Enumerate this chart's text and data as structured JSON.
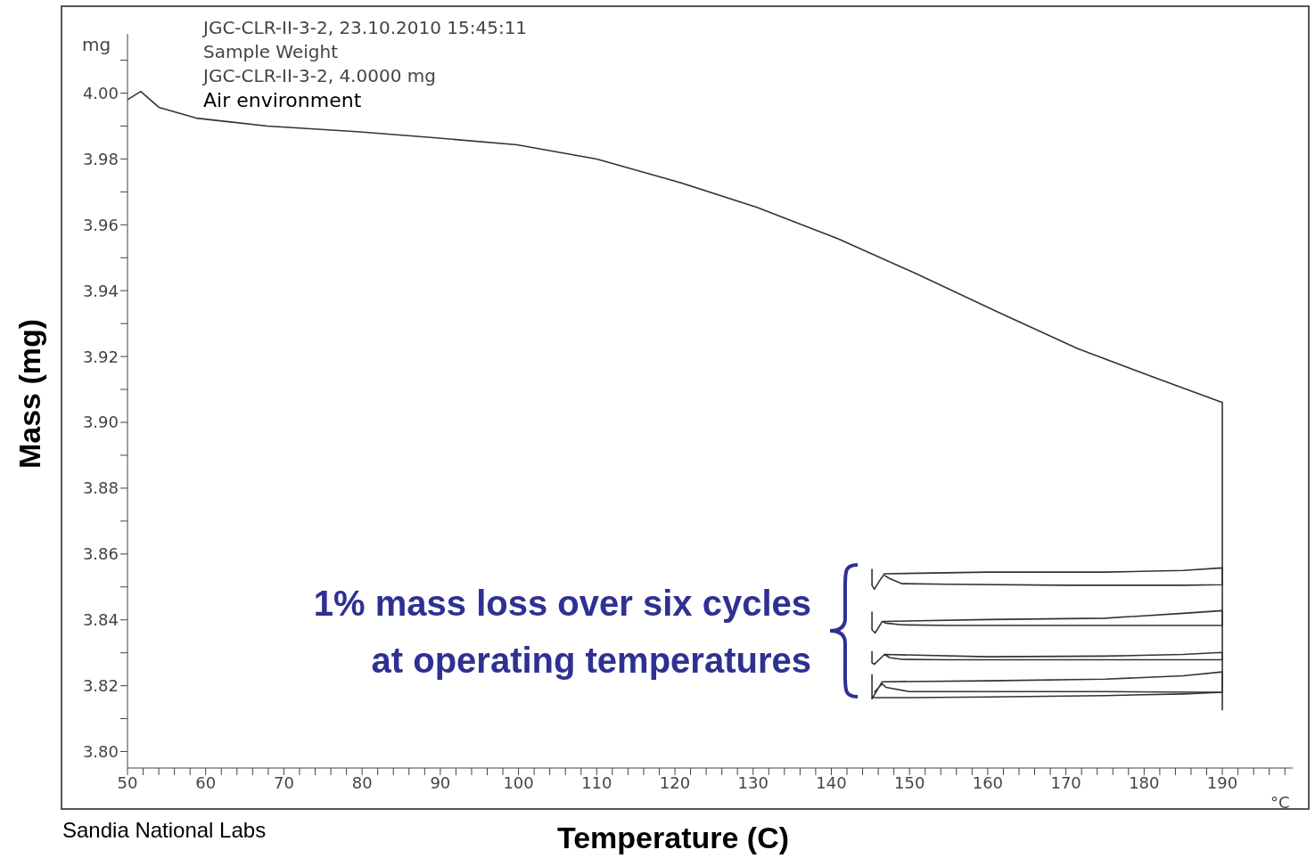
{
  "chart_data": {
    "type": "line",
    "xlabel": "Temperature (C)",
    "ylabel": "Mass (mg)",
    "annotations": [
      "JGC-CLR-II-3-2, 23.10.2010 15:45:11",
      "Sample Weight",
      "JGC-CLR-II-3-2, 4.0000 mg",
      "Air environment",
      "1% mass loss over six cycles\nat operating temperatures",
      "mg",
      "°C",
      "Sandia National Labs"
    ],
    "xlim": [
      50,
      199
    ],
    "ylim": [
      3.795,
      4.018
    ],
    "xticks": [
      50,
      {
        "value": 52,
        "label": null
      },
      {
        "value": 54,
        "label": null
      },
      {
        "value": 56,
        "label": null
      },
      {
        "value": 58,
        "label": null
      },
      60,
      {
        "value": 62,
        "label": null
      },
      {
        "value": 64,
        "label": null
      },
      {
        "value": 66,
        "label": null
      },
      {
        "value": 68,
        "label": null
      },
      70,
      {
        "value": 72,
        "label": null
      },
      {
        "value": 74,
        "label": null
      },
      {
        "value": 76,
        "label": null
      },
      {
        "value": 78,
        "label": null
      },
      80,
      {
        "value": 82,
        "label": null
      },
      {
        "value": 84,
        "label": null
      },
      {
        "value": 86,
        "label": null
      },
      {
        "value": 88,
        "label": null
      },
      90,
      {
        "value": 92,
        "label": null
      },
      {
        "value": 94,
        "label": null
      },
      {
        "value": 96,
        "label": null
      },
      {
        "value": 98,
        "label": null
      },
      100,
      {
        "value": 102,
        "label": null
      },
      {
        "value": 104,
        "label": null
      },
      {
        "value": 106,
        "label": null
      },
      {
        "value": 108,
        "label": null
      },
      110,
      {
        "value": 112,
        "label": null
      },
      {
        "value": 114,
        "label": null
      },
      {
        "value": 116,
        "label": null
      },
      {
        "value": 118,
        "label": null
      },
      120,
      {
        "value": 122,
        "label": null
      },
      {
        "value": 124,
        "label": null
      },
      {
        "value": 126,
        "label": null
      },
      {
        "value": 128,
        "label": null
      },
      130,
      {
        "value": 132,
        "label": null
      },
      {
        "value": 134,
        "label": null
      },
      {
        "value": 136,
        "label": null
      },
      {
        "value": 138,
        "label": null
      },
      140,
      {
        "value": 142,
        "label": null
      },
      {
        "value": 144,
        "label": null
      },
      {
        "value": 146,
        "label": null
      },
      {
        "value": 148,
        "label": null
      },
      150,
      {
        "value": 152,
        "label": null
      },
      {
        "value": 154,
        "label": null
      },
      {
        "value": 156,
        "label": null
      },
      {
        "value": 158,
        "label": null
      },
      160,
      {
        "value": 162,
        "label": null
      },
      {
        "value": 164,
        "label": null
      },
      {
        "value": 166,
        "label": null
      },
      {
        "value": 168,
        "label": null
      },
      170,
      {
        "value": 172,
        "label": null
      },
      {
        "value": 174,
        "label": null
      },
      {
        "value": 176,
        "label": null
      },
      {
        "value": 178,
        "label": null
      },
      180,
      {
        "value": 182,
        "label": null
      },
      {
        "value": 184,
        "label": null
      },
      {
        "value": 186,
        "label": null
      },
      {
        "value": 188,
        "label": null
      },
      190,
      {
        "value": 192,
        "label": null
      },
      {
        "value": 194,
        "label": null
      },
      {
        "value": 196,
        "label": null
      },
      {
        "value": 198,
        "label": null
      }
    ],
    "yticks": [
      {
        "value": 3.8,
        "label": "3.80"
      },
      {
        "value": 3.81,
        "label": null
      },
      3.82,
      {
        "value": 3.83,
        "label": null
      },
      3.84,
      {
        "value": 3.85,
        "label": null
      },
      3.86,
      {
        "value": 3.87,
        "label": null
      },
      3.88,
      {
        "value": 3.89,
        "label": null
      },
      {
        "value": 3.9,
        "label": "3.90"
      },
      {
        "value": 3.91,
        "label": null
      },
      3.92,
      {
        "value": 3.93,
        "label": null
      },
      3.94,
      {
        "value": 3.95,
        "label": null
      },
      3.96,
      {
        "value": 3.97,
        "label": null
      },
      3.98,
      {
        "value": 3.99,
        "label": null
      },
      {
        "value": 4.0,
        "label": "4.00"
      },
      {
        "value": 4.01,
        "label": null
      }
    ],
    "grid": false,
    "marker": "none",
    "line_style": "solid",
    "series": [
      {
        "color": "#333333",
        "x": [
          50,
          51.7,
          54,
          58.8,
          67.9,
          79.3,
          89.5,
          99.8,
          110,
          120.3,
          130.5,
          140.8,
          151,
          161.3,
          171.5,
          181.8,
          190,
          190
        ],
        "values": [
          3.998,
          4.0005,
          3.9957,
          3.9924,
          3.99,
          3.9883,
          3.9864,
          3.9843,
          3.98,
          3.9731,
          3.9653,
          3.9558,
          3.945,
          3.9335,
          3.9224,
          3.9132,
          3.906,
          3.8125
        ]
      },
      {
        "color": "#333333",
        "x": [
          145.2,
          145.2,
          145.5,
          146.2,
          146.8,
          160,
          175,
          185,
          190,
          190,
          185,
          170,
          155,
          149,
          147.5,
          146.8
        ],
        "values": [
          3.8555,
          3.8505,
          3.8493,
          3.852,
          3.854,
          3.8545,
          3.8545,
          3.855,
          3.8558,
          3.8507,
          3.8505,
          3.8505,
          3.8508,
          3.851,
          3.8525,
          3.8535
        ]
      },
      {
        "color": "#333333",
        "x": [
          145.2,
          145.2,
          145.6,
          146.5,
          160,
          175,
          185,
          190,
          190,
          170,
          155,
          149,
          147,
          146.5
        ],
        "values": [
          3.8425,
          3.837,
          3.836,
          3.8395,
          3.8401,
          3.8405,
          3.842,
          3.8428,
          3.8383,
          3.8383,
          3.8383,
          3.8385,
          3.839,
          3.8395
        ]
      },
      {
        "color": "#333333",
        "x": [
          145.2,
          145.2,
          145.5,
          146.8,
          160,
          175,
          185,
          190,
          190,
          170,
          155,
          149,
          147.5,
          146.8
        ],
        "values": [
          3.8305,
          3.827,
          3.8265,
          3.8295,
          3.8288,
          3.829,
          3.8295,
          3.8301,
          3.8279,
          3.8279,
          3.8279,
          3.828,
          3.8285,
          3.8295
        ]
      },
      {
        "color": "#333333",
        "x": [
          145.2,
          145.2,
          146.5,
          160,
          175,
          185,
          190,
          190,
          175,
          160,
          150,
          147,
          146.5,
          145.5
        ],
        "values": [
          3.8235,
          3.816,
          3.8212,
          3.8215,
          3.822,
          3.823,
          3.8242,
          3.818,
          3.8182,
          3.8182,
          3.8182,
          3.8195,
          3.8206,
          3.818
        ]
      },
      {
        "color": "#333333",
        "x": [
          145.2,
          150,
          160,
          175,
          185,
          190
        ],
        "values": [
          3.8164,
          3.8164,
          3.8166,
          3.817,
          3.8175,
          3.818
        ]
      }
    ]
  }
}
